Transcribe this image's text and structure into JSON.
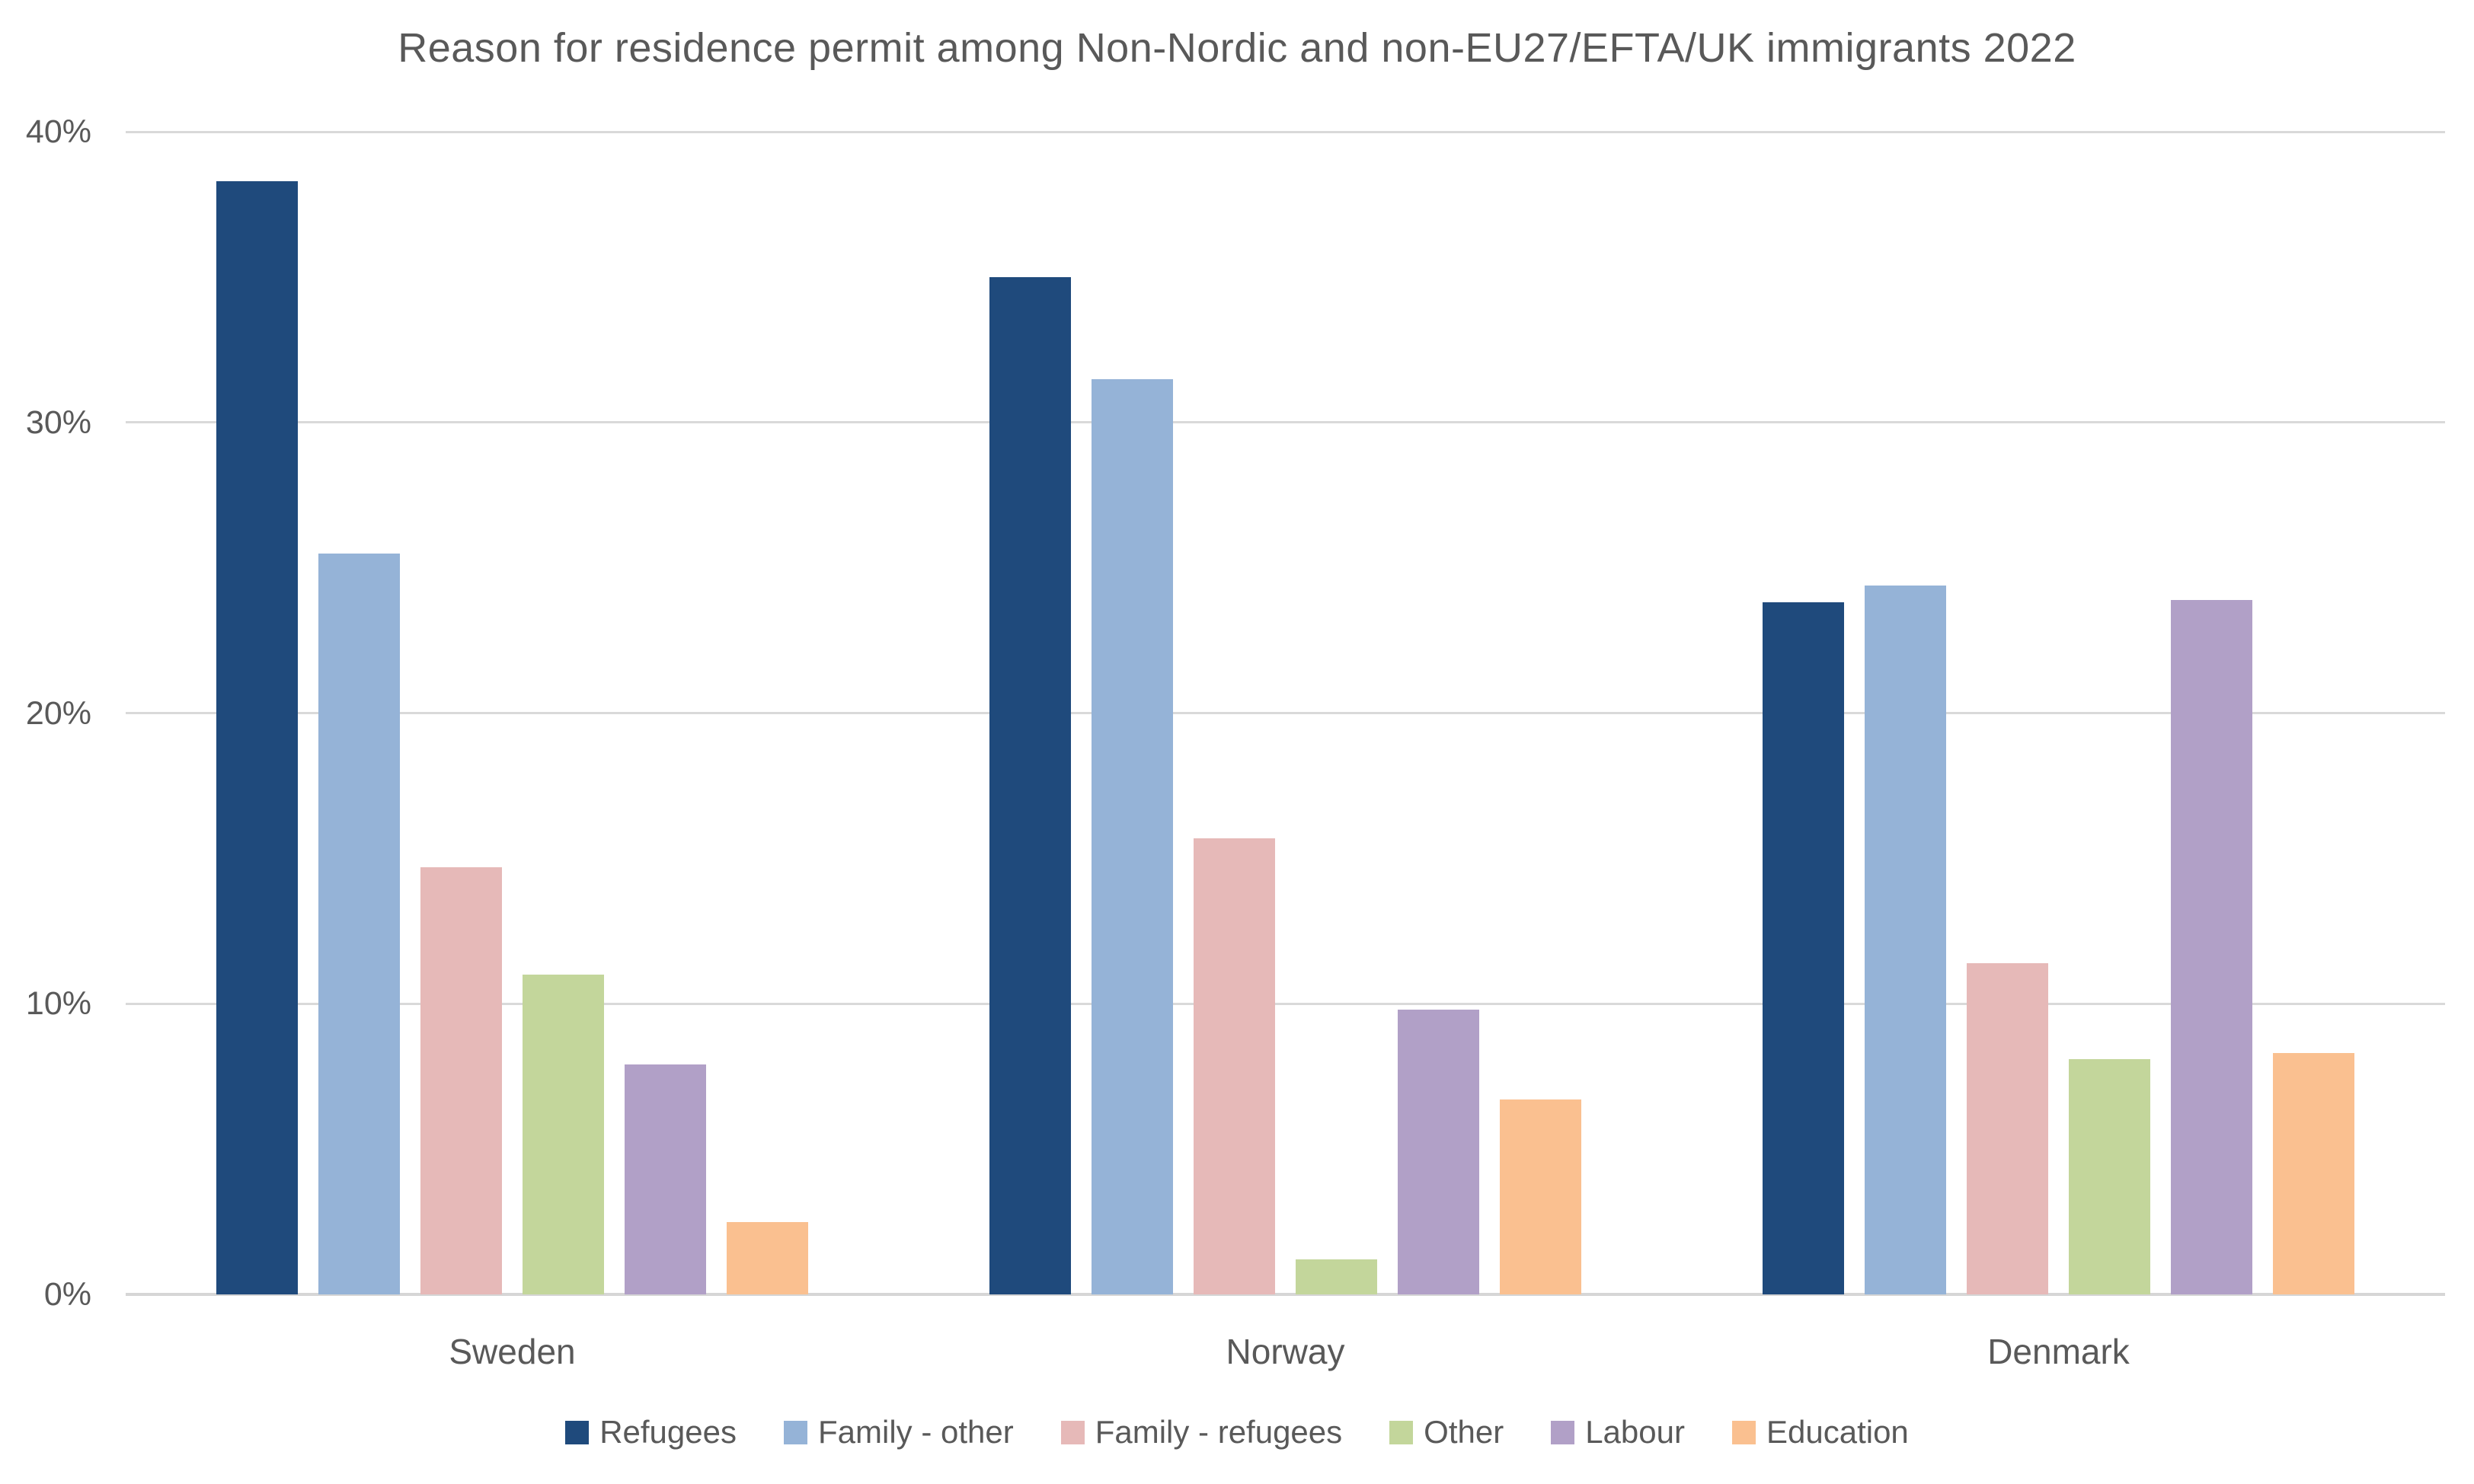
{
  "chart_data": {
    "type": "bar",
    "title": "Reason for residence permit among Non-Nordic and non-EU27/EFTA/UK immigrants 2022",
    "categories": [
      "Sweden",
      "Norway",
      "Denmark"
    ],
    "series": [
      {
        "name": "Refugees",
        "color": "#1F4A7C",
        "values": [
          38.3,
          35.0,
          23.8
        ]
      },
      {
        "name": "Family - other",
        "color": "#95B3D7",
        "values": [
          25.5,
          31.5,
          24.4
        ]
      },
      {
        "name": "Family - refugees",
        "color": "#E6B9B8",
        "values": [
          14.7,
          15.7,
          11.4
        ]
      },
      {
        "name": "Other",
        "color": "#C3D69B",
        "values": [
          11.0,
          1.2,
          8.1
        ]
      },
      {
        "name": "Labour",
        "color": "#B1A0C7",
        "values": [
          7.9,
          9.8,
          23.9
        ]
      },
      {
        "name": "Education",
        "color": "#FAC090",
        "values": [
          2.5,
          6.7,
          8.3
        ]
      }
    ],
    "ylim": [
      0,
      40
    ],
    "y_ticks": [
      {
        "value": 0,
        "label": "0%"
      },
      {
        "value": 10,
        "label": "10%"
      },
      {
        "value": 20,
        "label": "20%"
      },
      {
        "value": 30,
        "label": "30%"
      },
      {
        "value": 40,
        "label": "40%"
      }
    ],
    "grid": true,
    "legend_position": "bottom"
  },
  "colors": {
    "text": "#595959",
    "gridline": "#D9D9D9",
    "background": "#FFFFFF"
  }
}
